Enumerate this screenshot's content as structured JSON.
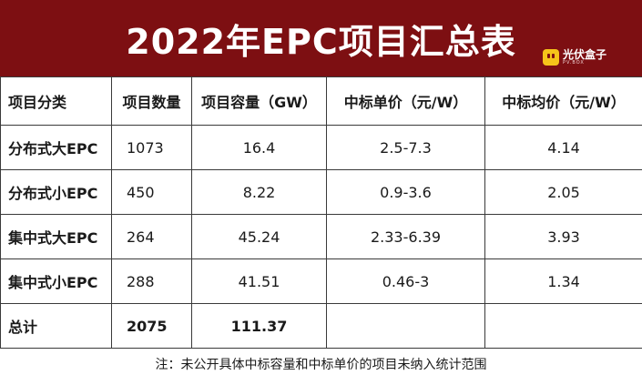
{
  "title": "2022年EPC项目汇总表",
  "logo": {
    "name": "光伏盒子",
    "sub": "PV.BOX"
  },
  "headers": [
    "项目分类",
    "项目数量",
    "项目容量（GW）",
    "中标单价（元/W）",
    "中标均价（元/W）"
  ],
  "rows": [
    {
      "category": "分布式大EPC",
      "count": "1073",
      "capacity": "16.4",
      "price_range": "2.5-7.3",
      "avg_price": "4.14"
    },
    {
      "category": "分布式小EPC",
      "count": "450",
      "capacity": "8.22",
      "price_range": "0.9-3.6",
      "avg_price": "2.05"
    },
    {
      "category": "集中式大EPC",
      "count": "264",
      "capacity": "45.24",
      "price_range": "2.33-6.39",
      "avg_price": "3.93"
    },
    {
      "category": "集中式小EPC",
      "count": "288",
      "capacity": "41.51",
      "price_range": "0.46-3",
      "avg_price": "1.34"
    }
  ],
  "total": {
    "label": "总计",
    "count": "2075",
    "capacity": "111.37",
    "price_range": "",
    "avg_price": ""
  },
  "note": "注：未公开具体中标容量和中标单价的项目未纳入统计范围",
  "colors": {
    "banner": "#7d0f12",
    "logo_badge": "#f6c41a",
    "border": "#3a3a3a"
  }
}
